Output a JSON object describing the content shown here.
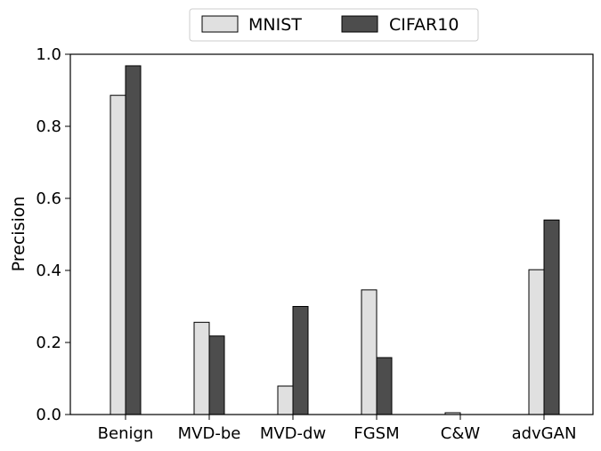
{
  "chart_data": {
    "type": "bar",
    "title": "",
    "xlabel": "",
    "ylabel": "Precision",
    "ylim": [
      0,
      1.0
    ],
    "yticks": [
      0.0,
      0.2,
      0.4,
      0.6,
      0.8,
      1.0
    ],
    "ytick_labels": [
      "0.0",
      "0.2",
      "0.4",
      "0.6",
      "0.8",
      "1.0"
    ],
    "grid": false,
    "legend_position": "top-center",
    "categories": [
      "Benign",
      "MVD-be",
      "MVD-dw",
      "FGSM",
      "C&W",
      "advGAN"
    ],
    "series": [
      {
        "name": "MNIST",
        "color": "#e0e0e0",
        "values": [
          0.886,
          0.256,
          0.079,
          0.346,
          0.005,
          0.402
        ]
      },
      {
        "name": "CIFAR10",
        "color": "#4d4d4d",
        "values": [
          0.968,
          0.218,
          0.3,
          0.158,
          0.0,
          0.54
        ]
      }
    ]
  }
}
